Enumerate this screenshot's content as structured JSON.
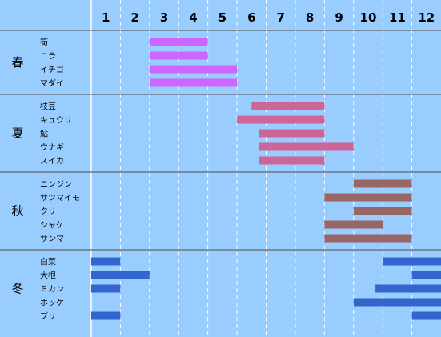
{
  "chart_data": {
    "type": "bar",
    "orientation": "horizontal-gantt",
    "months": [
      "1",
      "2",
      "3",
      "4",
      "5",
      "6",
      "7",
      "8",
      "9",
      "10",
      "11",
      "12"
    ],
    "xlim": [
      1,
      13
    ],
    "grid": true,
    "colors": {
      "background": "#99ccff",
      "grid": "#ffffff",
      "season_divider": "#666666"
    },
    "seasons": [
      {
        "name": "春",
        "color": "#cc66ff",
        "items": [
          {
            "name": "筍",
            "start": 3,
            "end": 5
          },
          {
            "name": "ニラ",
            "start": 3,
            "end": 5
          },
          {
            "name": "イチゴ",
            "start": 3,
            "end": 6
          },
          {
            "name": "マダイ",
            "start": 3,
            "end": 6
          }
        ]
      },
      {
        "name": "夏",
        "color": "#cc6699",
        "items": [
          {
            "name": "枝豆",
            "start": 6.5,
            "end": 9
          },
          {
            "name": "キュウリ",
            "start": 6,
            "end": 9
          },
          {
            "name": "鮎",
            "start": 6.75,
            "end": 9
          },
          {
            "name": "ウナギ",
            "start": 6.75,
            "end": 10
          },
          {
            "name": "スイカ",
            "start": 6.75,
            "end": 9
          }
        ]
      },
      {
        "name": "秋",
        "color": "#996666",
        "items": [
          {
            "name": "ニンジン",
            "start": 10,
            "end": 12
          },
          {
            "name": "サツマイモ",
            "start": 9,
            "end": 12
          },
          {
            "name": "クリ",
            "start": 10,
            "end": 12
          },
          {
            "name": "シャケ",
            "start": 9,
            "end": 11
          },
          {
            "name": "サンマ",
            "start": 9,
            "end": 12
          }
        ]
      },
      {
        "name": "冬",
        "color": "#3366cc",
        "items": [
          {
            "name": "白菜",
            "ranges": [
              [
                1,
                2
              ],
              [
                11,
                13
              ]
            ]
          },
          {
            "name": "大根",
            "ranges": [
              [
                1,
                3
              ],
              [
                12,
                13
              ]
            ]
          },
          {
            "name": "ミカン",
            "ranges": [
              [
                1,
                2
              ],
              [
                10.75,
                13
              ]
            ]
          },
          {
            "name": "ホッケ",
            "ranges": [
              [
                10,
                13
              ]
            ]
          },
          {
            "name": "ブリ",
            "ranges": [
              [
                1,
                2
              ],
              [
                12,
                13
              ]
            ]
          }
        ]
      }
    ]
  }
}
